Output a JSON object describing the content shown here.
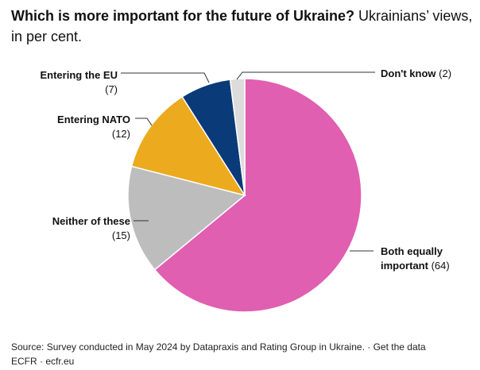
{
  "chart_data": {
    "type": "pie",
    "title": "Which is more important for the future of Ukraine?",
    "subtitle": "Ukrainians’ views, in per cent.",
    "slices": [
      {
        "label": "Both equally important",
        "value": 64,
        "color": "#e05fb0"
      },
      {
        "label": "Neither of these",
        "value": 15,
        "color": "#bdbdbd"
      },
      {
        "label": "Entering NATO",
        "value": 12,
        "color": "#ecaa1f"
      },
      {
        "label": "Entering the EU",
        "value": 7,
        "color": "#0a3a78"
      },
      {
        "label": "Don't know",
        "value": 2,
        "color": "#dcdcdc"
      }
    ],
    "start": "12 o'clock",
    "direction": "clockwise"
  },
  "labels": {
    "both_1": "Both equally",
    "both_2": "important",
    "both_v": "(64)",
    "neither": "Neither of these",
    "neither_v": "(15)",
    "nato": "Entering NATO",
    "nato_v": "(12)",
    "eu": "Entering the EU",
    "eu_v": "(7)",
    "dk": "Don't know",
    "dk_v": "(2)"
  },
  "footer": {
    "source": "Source: Survey conducted in May 2024 by Datapraxis and Rating Group in Ukraine.",
    "sep": " · ",
    "get_data": "Get the data",
    "credit": "ECFR · ecfr.eu"
  }
}
